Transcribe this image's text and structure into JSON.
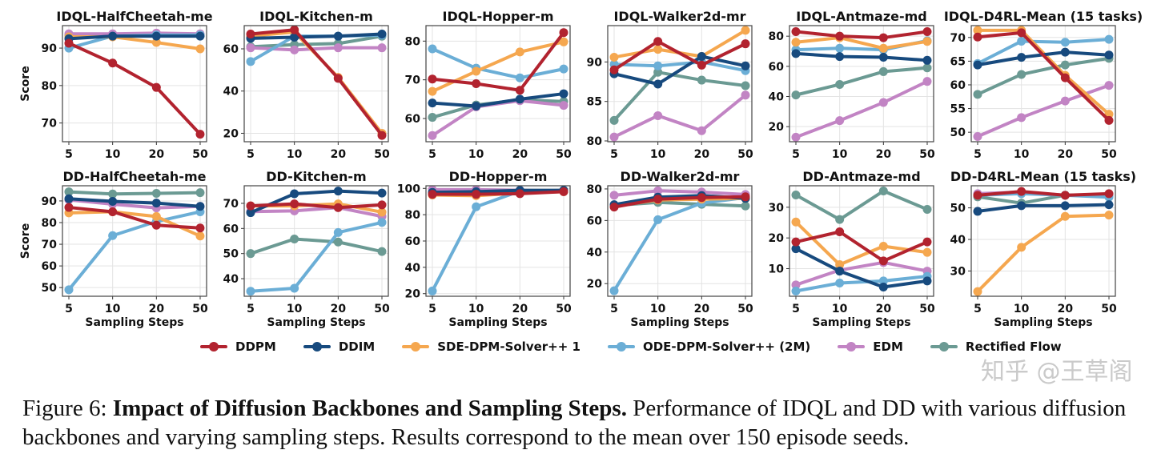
{
  "chart_data": {
    "type": "line",
    "x": [
      5,
      10,
      20,
      50
    ],
    "xlabel": "Sampling Steps",
    "ylabel": "Score",
    "grid": true,
    "legend_placement": "bottom-center",
    "series_names": [
      "DDPM",
      "DDIM",
      "SDE-DPM-Solver++ 1",
      "ODE-DPM-Solver++ (2M)",
      "EDM",
      "Rectified Flow"
    ],
    "colors": [
      "#B2232F",
      "#174A7E",
      "#F5A74F",
      "#6BAED6",
      "#C284C4",
      "#6B9A93"
    ],
    "panels": [
      {
        "title": "IDQL-HalfCheetah-me",
        "ylim": [
          65,
          96
        ],
        "yticks": [
          70,
          80,
          90
        ],
        "series": [
          [
            91.3,
            86,
            79.5,
            67
          ],
          [
            92.5,
            93.2,
            93.2,
            93.2
          ],
          [
            93,
            93,
            91.5,
            89.8
          ],
          [
            90,
            93.2,
            93.5,
            93.5
          ],
          [
            93.8,
            93.8,
            94,
            93.8
          ],
          [
            93.5,
            93.5,
            93.5,
            93.5
          ]
        ]
      },
      {
        "title": "IDQL-Kitchen-m",
        "ylim": [
          16,
          71
        ],
        "yticks": [
          20,
          40,
          60
        ],
        "series": [
          [
            67,
            69,
            46,
            19
          ],
          [
            65,
            65.5,
            66,
            67
          ],
          [
            66,
            68,
            46.5,
            20
          ],
          [
            54,
            66,
            66,
            66.5
          ],
          [
            60.5,
            59.5,
            60.5,
            60.5
          ],
          [
            61,
            62,
            62.5,
            66
          ]
        ]
      },
      {
        "title": "IDQL-Hopper-m",
        "ylim": [
          54,
          84
        ],
        "yticks": [
          60,
          70,
          80
        ],
        "series": [
          [
            70.2,
            69,
            67.3,
            82.2
          ],
          [
            64,
            63.2,
            65,
            66.4
          ],
          [
            67,
            72.2,
            77.2,
            79.8
          ],
          [
            78,
            73,
            70.5,
            72.8
          ],
          [
            55.6,
            63,
            64.6,
            63.4
          ],
          [
            60.3,
            63.5,
            64.8,
            64.4
          ]
        ]
      },
      {
        "title": "IDQL-Walker2d-mr",
        "ylim": [
          79.9,
          94.6
        ],
        "yticks": [
          80,
          85,
          90
        ],
        "series": [
          [
            89,
            92.6,
            89.6,
            92.3
          ],
          [
            88.5,
            87.2,
            90.7,
            89.5
          ],
          [
            90.6,
            91.6,
            90.7,
            94
          ],
          [
            89.7,
            89.5,
            90,
            88.9
          ],
          [
            80.5,
            83.2,
            81.3,
            85.8
          ],
          [
            82.6,
            88.7,
            87.7,
            87
          ]
        ]
      },
      {
        "title": "IDQL-Antmaze-md",
        "ylim": [
          10,
          87
        ],
        "yticks": [
          20,
          40,
          60,
          80
        ],
        "series": [
          [
            83,
            80,
            79,
            83
          ],
          [
            68.5,
            66.5,
            66,
            64
          ],
          [
            76,
            79,
            72,
            76.5
          ],
          [
            71,
            72,
            71,
            77
          ],
          [
            13,
            24,
            36,
            50
          ],
          [
            41,
            48,
            56.5,
            59
          ]
        ]
      },
      {
        "title": "IDQL-D4RL-Mean (15 tasks)",
        "ylim": [
          48,
          72.5
        ],
        "yticks": [
          50,
          55,
          60,
          65,
          70
        ],
        "series": [
          [
            70.1,
            71,
            61.5,
            52.5
          ],
          [
            64.2,
            65.8,
            66.9,
            66.3
          ],
          [
            71.5,
            71.5,
            62,
            53.8
          ],
          [
            64.5,
            69.2,
            69,
            69.6
          ],
          [
            49.1,
            53.1,
            56.6,
            59.9
          ],
          [
            58,
            62.2,
            64.2,
            65.6
          ]
        ]
      },
      {
        "title": "DD-HalfCheetah-me",
        "ylim": [
          46,
          97
        ],
        "yticks": [
          50,
          60,
          70,
          80,
          90
        ],
        "series": [
          [
            87,
            85,
            78.8,
            77.5
          ],
          [
            91,
            89.8,
            89,
            87.5
          ],
          [
            84.5,
            85,
            82.8,
            73.8
          ],
          [
            49,
            74,
            80.5,
            85
          ],
          [
            90.5,
            88.5,
            86.8,
            87.5
          ],
          [
            94.2,
            93.2,
            93.5,
            93.8
          ]
        ]
      },
      {
        "title": "DD-Kitchen-m",
        "ylim": [
          33,
          77
        ],
        "yticks": [
          40,
          50,
          60,
          70
        ],
        "series": [
          [
            69,
            69.8,
            68.3,
            69.4
          ],
          [
            66.3,
            73.8,
            74.9,
            74.1
          ],
          [
            69,
            69,
            69.8,
            66.5
          ],
          [
            35,
            36.2,
            58.4,
            62.4
          ],
          [
            66.7,
            67,
            68.3,
            64.8
          ],
          [
            50,
            55.8,
            54.6,
            50.8
          ]
        ]
      },
      {
        "title": "DD-Hopper-m",
        "ylim": [
          18,
          102
        ],
        "yticks": [
          20,
          40,
          60,
          80,
          100
        ],
        "series": [
          [
            95.5,
            95.5,
            96,
            97.5
          ],
          [
            97,
            97.5,
            98.5,
            98.5
          ],
          [
            95,
            94.5,
            96.5,
            97.5
          ],
          [
            22,
            86,
            98,
            98.5
          ],
          [
            99,
            99,
            98.5,
            98
          ],
          [
            96,
            96.5,
            97,
            98
          ]
        ]
      },
      {
        "title": "DD-Walker2d-mr",
        "ylim": [
          12,
          82
        ],
        "yticks": [
          20,
          40,
          60,
          80
        ],
        "series": [
          [
            68.5,
            73.5,
            74.5,
            75
          ],
          [
            70,
            74.8,
            75.8,
            74
          ],
          [
            69,
            73,
            73.5,
            74
          ],
          [
            15.5,
            60.5,
            71,
            74.5
          ],
          [
            76,
            78.8,
            78,
            76.5
          ],
          [
            69.5,
            71.5,
            70.3,
            69.2
          ]
        ]
      },
      {
        "title": "DD-Antmaze-md",
        "ylim": [
          1,
          37
        ],
        "yticks": [
          10,
          20,
          30
        ],
        "series": [
          [
            18.7,
            22,
            12.5,
            18.7
          ],
          [
            16.5,
            9.2,
            4,
            6
          ],
          [
            25.2,
            11.3,
            17.3,
            15.3
          ],
          [
            2.7,
            5.3,
            6,
            7.5
          ],
          [
            4.7,
            9.5,
            12,
            9.2
          ],
          [
            34,
            26,
            35.3,
            29.3
          ]
        ]
      },
      {
        "title": "DD-D4RL-Mean (15 tasks)",
        "ylim": [
          22,
          57
        ],
        "yticks": [
          30,
          40,
          50
        ],
        "series": [
          [
            54,
            55.2,
            54,
            54.5
          ],
          [
            48.9,
            50.7,
            50.7,
            51
          ],
          [
            23.5,
            37.5,
            47.3,
            47.7
          ],
          [
            54,
            54.5,
            54,
            53.4
          ],
          [
            54.5,
            55,
            54,
            54
          ],
          [
            53.5,
            51.5,
            54,
            54.2
          ]
        ]
      }
    ]
  },
  "caption": {
    "label": "Figure 6:",
    "bold": "Impact of Diffusion Backbones and Sampling Steps.",
    "text": "Performance of IDQL and DD with various diffusion backbones and varying sampling steps. Results correspond to the mean over 150 episode seeds."
  },
  "watermark": "知乎 @王草阁"
}
